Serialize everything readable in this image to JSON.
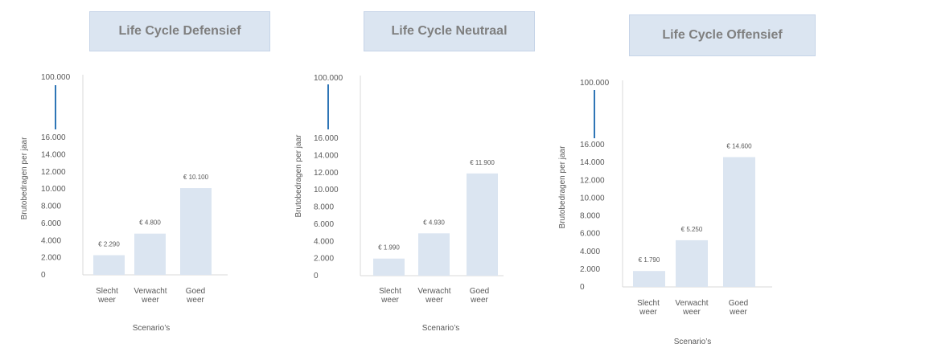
{
  "chart_data": [
    {
      "type": "bar",
      "title": "Life Cycle Defensief",
      "ylabel": "Brutobedragen per jaar",
      "xlabel": "Scenario’s",
      "categories": [
        [
          "Slecht",
          "weer"
        ],
        [
          "Verwacht",
          "weer"
        ],
        [
          "Goed",
          "weer"
        ]
      ],
      "values": [
        2290,
        4800,
        10100
      ],
      "data_labels": [
        "€ 2.290",
        "€ 4.800",
        "€ 10.100"
      ],
      "y_ticks": [
        0,
        2000,
        4000,
        6000,
        8000,
        10000,
        12000,
        14000,
        16000
      ],
      "y_tick_labels": [
        "0",
        "2.000",
        "4.000",
        "6.000",
        "8.000",
        "10.000",
        "12.000",
        "14.000",
        "16.000"
      ],
      "y_break_top_label": "100.000",
      "ylim": [
        0,
        16000
      ],
      "grid": false,
      "colors": {
        "bar": "#dbe5f1",
        "break_line": "#2e75b6",
        "axis": "#d9d9d9"
      }
    },
    {
      "type": "bar",
      "title": "Life Cycle Neutraal",
      "ylabel": "Brutobedragen per jaar",
      "xlabel": "Scenario’s",
      "categories": [
        [
          "Slecht",
          "weer"
        ],
        [
          "Verwacht",
          "weer"
        ],
        [
          "Goed",
          "weer"
        ]
      ],
      "values": [
        1990,
        4930,
        11900
      ],
      "data_labels": [
        "€ 1.990",
        "€ 4.930",
        "€ 11.900"
      ],
      "y_ticks": [
        0,
        2000,
        4000,
        6000,
        8000,
        10000,
        12000,
        14000,
        16000
      ],
      "y_tick_labels": [
        "0",
        "2.000",
        "4.000",
        "6.000",
        "8.000",
        "10.000",
        "12.000",
        "14.000",
        "16.000"
      ],
      "y_break_top_label": "100.000",
      "ylim": [
        0,
        16000
      ],
      "grid": false,
      "colors": {
        "bar": "#dbe5f1",
        "break_line": "#2e75b6",
        "axis": "#d9d9d9"
      }
    },
    {
      "type": "bar",
      "title": "Life Cycle Offensief",
      "ylabel": "Brutobedragen per jaar",
      "xlabel": "Scenario’s",
      "categories": [
        [
          "Slecht",
          "weer"
        ],
        [
          "Verwacht",
          "weer"
        ],
        [
          "Goed",
          "weer"
        ]
      ],
      "values": [
        1790,
        5250,
        14600
      ],
      "data_labels": [
        "€ 1.790",
        "€ 5.250",
        "€ 14.600"
      ],
      "y_ticks": [
        0,
        2000,
        4000,
        6000,
        8000,
        10000,
        12000,
        14000,
        16000
      ],
      "y_tick_labels": [
        "0",
        "2.000",
        "4.000",
        "6.000",
        "8.000",
        "10.000",
        "12.000",
        "14.000",
        "16.000"
      ],
      "y_break_top_label": "100.000",
      "ylim": [
        0,
        16000
      ],
      "grid": false,
      "colors": {
        "bar": "#dbe5f1",
        "break_line": "#2e75b6",
        "axis": "#d9d9d9"
      }
    }
  ]
}
